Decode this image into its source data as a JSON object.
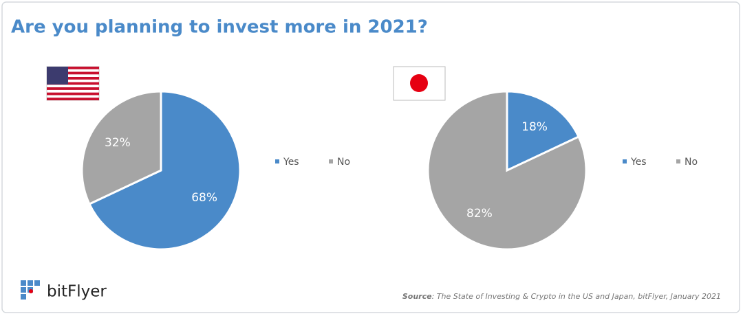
{
  "title": "Are you planning to invest more in 2021?",
  "chart_data": [
    {
      "type": "pie",
      "categories": [
        "Yes",
        "No"
      ],
      "values": [
        68,
        32
      ],
      "value_labels": [
        "68%",
        "32%"
      ],
      "colors": [
        "#4a8ac9",
        "#a5a5a5"
      ]
    },
    {
      "type": "pie",
      "categories": [
        "Yes",
        "No"
      ],
      "values": [
        18,
        82
      ],
      "value_labels": [
        "18%",
        "82%"
      ],
      "colors": [
        "#4a8ac9",
        "#a5a5a5"
      ]
    }
  ],
  "logo": "bitFlyer",
  "source": {
    "label": "Source",
    "text": ": The State of Investing & Crypto in the US and Japan, bitFlyer, January 2021"
  }
}
